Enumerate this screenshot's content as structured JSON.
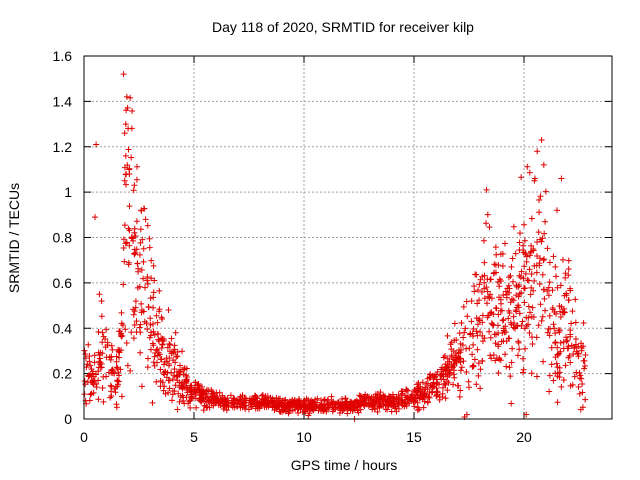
{
  "chart_data": {
    "type": "scatter",
    "title": "Day 118 of 2020, SRMTID for receiver kilp",
    "xlabel": "GPS time / hours",
    "ylabel": "SRMTID / TECUs",
    "xlim": [
      0,
      24
    ],
    "ylim": [
      0,
      1.6
    ],
    "xticks": [
      0,
      5,
      10,
      15,
      20
    ],
    "xtick_labels": [
      "0",
      "5",
      "10",
      "15",
      "20"
    ],
    "yticks": [
      0,
      0.2,
      0.4,
      0.6,
      0.8,
      1,
      1.2,
      1.4,
      1.6
    ],
    "ytick_labels": [
      "0",
      "0.2",
      "0.4",
      "0.6",
      "0.8",
      "1",
      "1.2",
      "1.4",
      "1.6"
    ],
    "grid": true,
    "marker": "plus",
    "color": "#e00000",
    "envelope": [
      [
        0.0,
        0.22
      ],
      [
        0.3,
        0.2
      ],
      [
        0.6,
        0.22
      ],
      [
        0.9,
        0.26
      ],
      [
        1.2,
        0.22
      ],
      [
        1.5,
        0.18
      ],
      [
        1.7,
        0.3
      ],
      [
        1.85,
        0.85
      ],
      [
        2.0,
        0.9
      ],
      [
        2.2,
        0.75
      ],
      [
        2.5,
        0.62
      ],
      [
        2.8,
        0.55
      ],
      [
        3.1,
        0.42
      ],
      [
        3.5,
        0.32
      ],
      [
        4.0,
        0.24
      ],
      [
        4.5,
        0.15
      ],
      [
        5.0,
        0.12
      ],
      [
        6.0,
        0.08
      ],
      [
        7.0,
        0.07
      ],
      [
        8.0,
        0.07
      ],
      [
        9.0,
        0.06
      ],
      [
        10.0,
        0.06
      ],
      [
        11.0,
        0.06
      ],
      [
        12.0,
        0.06
      ],
      [
        13.0,
        0.08
      ],
      [
        14.0,
        0.08
      ],
      [
        15.0,
        0.1
      ],
      [
        16.0,
        0.15
      ],
      [
        16.8,
        0.22
      ],
      [
        17.3,
        0.3
      ],
      [
        17.8,
        0.38
      ],
      [
        18.3,
        0.55
      ],
      [
        18.8,
        0.5
      ],
      [
        19.3,
        0.45
      ],
      [
        19.8,
        0.55
      ],
      [
        20.3,
        0.6
      ],
      [
        20.7,
        0.7
      ],
      [
        21.0,
        0.55
      ],
      [
        21.5,
        0.35
      ],
      [
        22.0,
        0.4
      ],
      [
        22.5,
        0.3
      ],
      [
        22.8,
        0.2
      ]
    ],
    "outliers": [
      [
        1.8,
        1.52
      ],
      [
        1.95,
        1.42
      ],
      [
        1.9,
        1.3
      ],
      [
        1.85,
        1.26
      ],
      [
        1.9,
        1.16
      ],
      [
        2.05,
        1.1
      ],
      [
        1.85,
        1.05
      ],
      [
        0.55,
        1.21
      ],
      [
        0.5,
        0.89
      ],
      [
        0.7,
        0.55
      ],
      [
        0.8,
        0.52
      ],
      [
        2.6,
        0.92
      ],
      [
        2.8,
        0.88
      ],
      [
        20.8,
        1.23
      ],
      [
        20.6,
        1.18
      ],
      [
        20.9,
        1.12
      ],
      [
        20.5,
        1.06
      ],
      [
        21.7,
        1.06
      ],
      [
        18.3,
        1.01
      ],
      [
        21.5,
        0.92
      ],
      [
        12.3,
        0.0
      ],
      [
        20.1,
        0.02
      ],
      [
        15.0,
        0.12
      ]
    ]
  }
}
